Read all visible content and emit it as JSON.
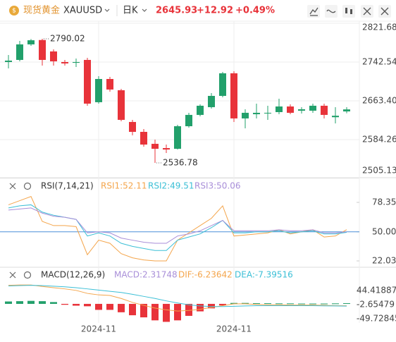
{
  "header": {
    "name": "现货黄金",
    "symbol": "XAUUSD",
    "period": "日K",
    "price": "2645.93",
    "change": "+12.92",
    "change_pct": "+0.49%"
  },
  "chart_data": [
    {
      "type": "candlestick",
      "categories": [
        null,
        null,
        null,
        null,
        null,
        null,
        null,
        null,
        "2024-11",
        null,
        null,
        null,
        null,
        null,
        null,
        null,
        null,
        null,
        null,
        null,
        "2024-11",
        null,
        null,
        null,
        null,
        null,
        null,
        null,
        null,
        null,
        null
      ],
      "open": [
        2742.6,
        2746.9,
        2778.6,
        2787.5,
        2764.2,
        2742.6,
        2741.0,
        2746.9,
        2660.6,
        2708.0,
        2685.0,
        2620.3,
        2600.1,
        2575.7,
        2567.0,
        2565.6,
        2611.6,
        2634.7,
        2650.5,
        2673.5,
        2719.6,
        2627.5,
        2636.1,
        2638.0,
        2640.4,
        2651.9,
        2643.3,
        2643.3,
        2653.4,
        2630.0,
        2641.8
      ],
      "high": [
        2757.0,
        2785.7,
        2789.5,
        2790.02,
        2768.5,
        2746.9,
        2749.8,
        2751.2,
        2713.8,
        2712.4,
        2687.9,
        2624.6,
        2605.9,
        2584.3,
        2574.2,
        2614.5,
        2639.0,
        2656.3,
        2679.3,
        2722.4,
        2723.9,
        2646.2,
        2657.7,
        2653.4,
        2667.8,
        2656.3,
        2650.5,
        2657.7,
        2657.7,
        2650.5,
        2650.5
      ],
      "low": [
        2729.6,
        2744.0,
        2775.7,
        2735.4,
        2735.4,
        2735.4,
        2732.5,
        2653.4,
        2657.7,
        2682.1,
        2621.7,
        2593.0,
        2569.9,
        2536.78,
        2557.0,
        2564.1,
        2608.8,
        2631.8,
        2647.6,
        2670.6,
        2620.3,
        2607.3,
        2627.5,
        2624.6,
        2636.1,
        2636.1,
        2637.5,
        2639.0,
        2627.5,
        2617.4,
        2638.0
      ],
      "close": [
        2745.5,
        2778.6,
        2787.0,
        2746.9,
        2744.0,
        2739.7,
        2742.6,
        2657.7,
        2708.0,
        2686.5,
        2624.6,
        2600.1,
        2574.2,
        2565.6,
        2564.1,
        2611.6,
        2634.7,
        2653.4,
        2673.5,
        2719.6,
        2627.5,
        2639.0,
        2639.0,
        2639.0,
        2651.9,
        2639.0,
        2646.2,
        2653.4,
        2634.7,
        2633.01,
        2645.93
      ],
      "up_color": "#22a06b",
      "down_color": "#e8333a",
      "ylim": [
        2505.13,
        2821.68
      ],
      "yticks": [
        2505.13,
        2584.26,
        {
          "value": 2663.4,
          "label": "2663.40"
        },
        2742.54,
        2821.68
      ],
      "grid": true
    },
    {
      "type": "line",
      "title": "RSI(7,14,21)",
      "series": [
        {
          "name": "RSI1:52.11",
          "color": "#f4a54b",
          "values": [
            76,
            80,
            84,
            60,
            56,
            56,
            55,
            28,
            42,
            39,
            29,
            25,
            23,
            22,
            22,
            42,
            49,
            56,
            63,
            75,
            46,
            47,
            48,
            49,
            52,
            48,
            50,
            52,
            45,
            46,
            52.11
          ]
        },
        {
          "name": "RSI2:49.51",
          "color": "#3bbfd6",
          "values": [
            73,
            75,
            76,
            69,
            66,
            64,
            62,
            46,
            49,
            46,
            39,
            36,
            34,
            32,
            32,
            42,
            45,
            48,
            54,
            61,
            49,
            49,
            50,
            50,
            51,
            49,
            50,
            51,
            48,
            48,
            49.51
          ]
        },
        {
          "name": "RSI3:50.06",
          "color": "#a88ed8",
          "values": [
            71,
            72,
            73,
            68,
            65,
            64,
            62,
            49,
            50,
            49,
            44,
            42,
            40,
            39,
            39,
            46,
            48,
            51,
            56,
            61,
            51,
            51,
            51,
            51,
            52,
            51,
            51,
            52,
            49,
            49,
            50.06
          ]
        }
      ],
      "hline": {
        "value": 50,
        "color": "#4a8fd8"
      },
      "ylim": [
        16.6,
        95.3
      ],
      "yticks": [
        22.03,
        {
          "value": 50,
          "label": "50.00"
        },
        78.35
      ],
      "grid": false
    },
    {
      "type": "macd",
      "title": "MACD(12,26,9)",
      "histogram": {
        "name": "MACD:2.31748",
        "color": "#a88ed8",
        "up_color": "#22a06b",
        "down_color": "#e8333a",
        "values": [
          8,
          9,
          10,
          9,
          6,
          -3,
          -6,
          -8,
          -20,
          -20,
          -28,
          -38,
          -45,
          -55,
          -60,
          -55,
          -40,
          -25,
          -15,
          -5,
          3,
          3,
          2,
          2,
          1.5,
          1.5,
          1,
          1,
          1,
          1.5,
          2.31748
        ]
      },
      "series": [
        {
          "name": "DIF:-6.23642",
          "color": "#f4a54b",
          "values": [
            62,
            63,
            63,
            58,
            54,
            50,
            45,
            35,
            30,
            28,
            18,
            5,
            -5,
            -14,
            -20,
            -24,
            -22,
            -18,
            -12,
            -6,
            0,
            0,
            -2,
            -3,
            -3,
            -4,
            -4,
            -4,
            -5,
            -6,
            -6.23642
          ]
        },
        {
          "name": "DEA:-7.39516",
          "color": "#3bbfd6",
          "values": [
            60,
            61,
            62,
            61,
            59,
            57,
            54,
            50,
            46,
            42,
            38,
            32,
            25,
            18,
            10,
            3,
            -3,
            -7,
            -9,
            -9,
            -8,
            -7,
            -6,
            -6,
            -6,
            -6,
            -6,
            -6,
            -6.5,
            -7,
            -7.39516
          ]
        }
      ],
      "ylim": [
        -63.7,
        72.8
      ],
      "yticks": [
        44.41887,
        -2.65479,
        -49.72845
      ],
      "grid": false
    }
  ]
}
